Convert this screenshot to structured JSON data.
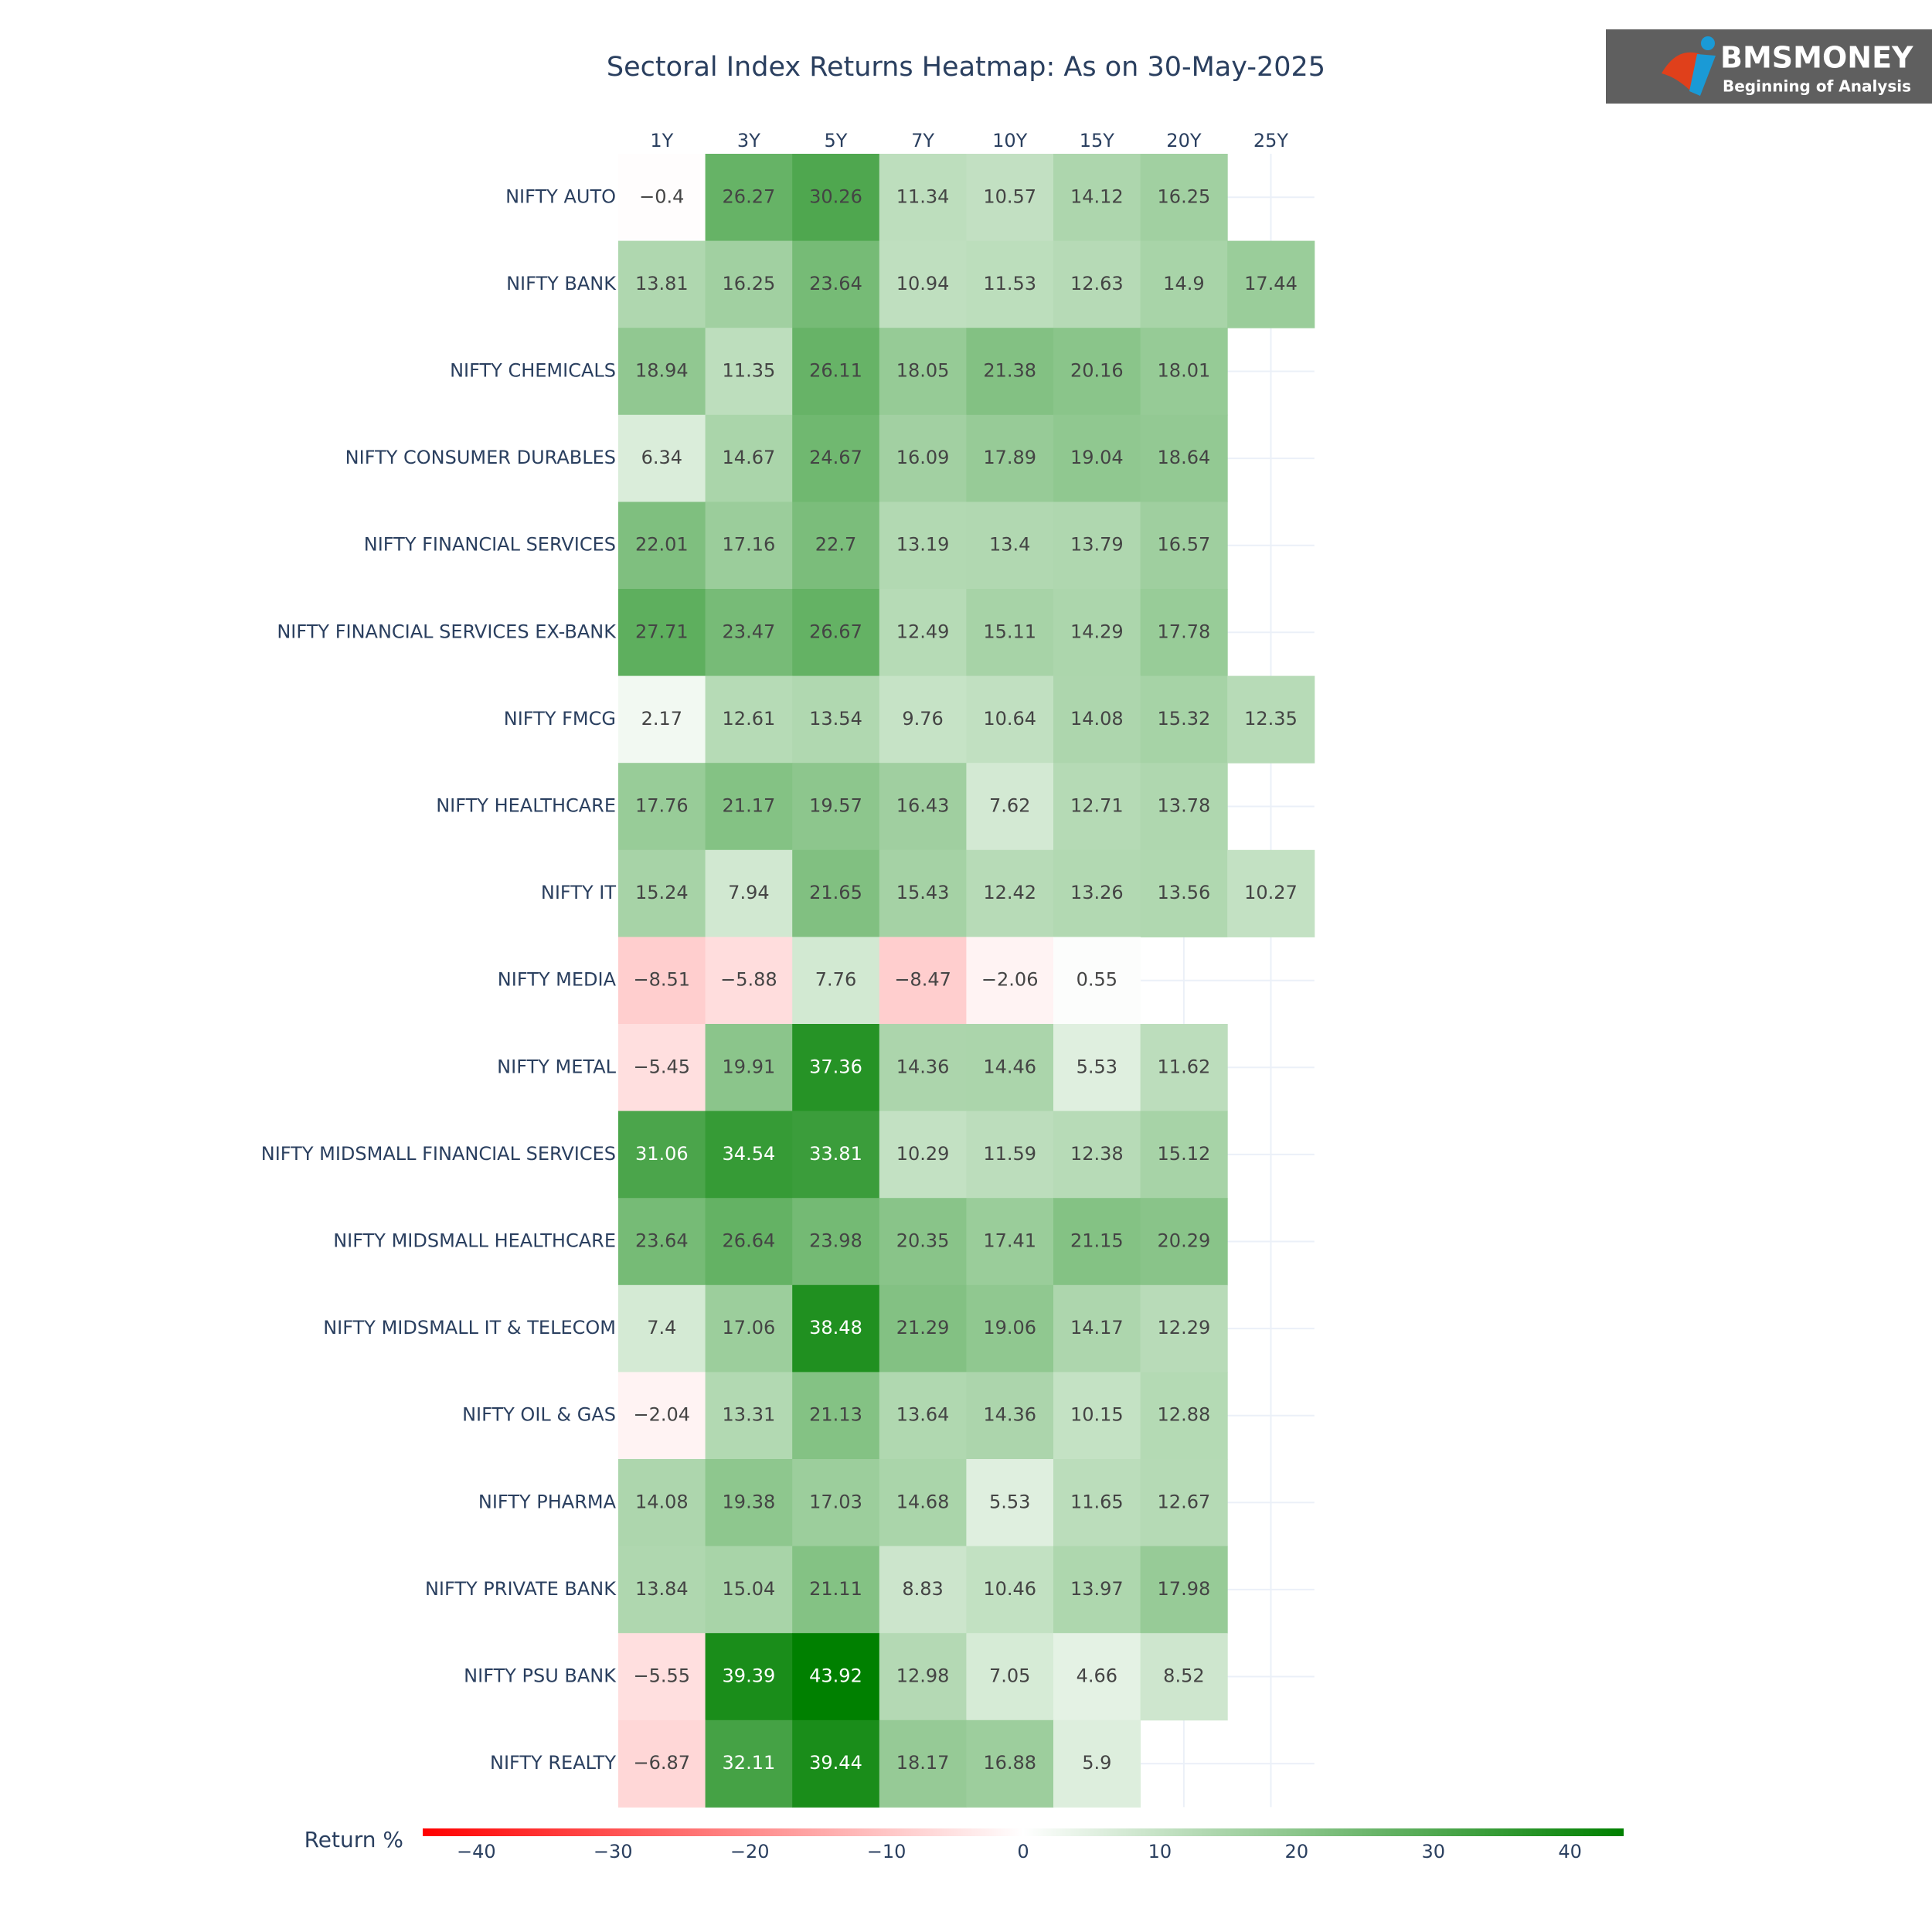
{
  "chart_data": {
    "type": "heatmap",
    "title": "Sectoral Index Returns Heatmap: As on 30-May-2025",
    "x": [
      "1Y",
      "3Y",
      "5Y",
      "7Y",
      "10Y",
      "15Y",
      "20Y",
      "25Y"
    ],
    "y": [
      "NIFTY AUTO",
      "NIFTY BANK",
      "NIFTY CHEMICALS",
      "NIFTY CONSUMER DURABLES",
      "NIFTY FINANCIAL SERVICES",
      "NIFTY FINANCIAL SERVICES EX-BANK",
      "NIFTY FMCG",
      "NIFTY HEALTHCARE",
      "NIFTY IT",
      "NIFTY MEDIA",
      "NIFTY METAL",
      "NIFTY MIDSMALL FINANCIAL SERVICES",
      "NIFTY MIDSMALL HEALTHCARE",
      "NIFTY MIDSMALL IT & TELECOM",
      "NIFTY OIL & GAS",
      "NIFTY PHARMA",
      "NIFTY PRIVATE BANK",
      "NIFTY PSU BANK",
      "NIFTY REALTY"
    ],
    "values": [
      [
        -0.4,
        26.27,
        30.26,
        11.34,
        10.57,
        14.12,
        16.25,
        null
      ],
      [
        13.81,
        16.25,
        23.64,
        10.94,
        11.53,
        12.63,
        14.9,
        17.44
      ],
      [
        18.94,
        11.35,
        26.11,
        18.05,
        21.38,
        20.16,
        18.01,
        null
      ],
      [
        6.34,
        14.67,
        24.67,
        16.09,
        17.89,
        19.04,
        18.64,
        null
      ],
      [
        22.01,
        17.16,
        22.7,
        13.19,
        13.4,
        13.79,
        16.57,
        null
      ],
      [
        27.71,
        23.47,
        26.67,
        12.49,
        15.11,
        14.29,
        17.78,
        null
      ],
      [
        2.17,
        12.61,
        13.54,
        9.76,
        10.64,
        14.08,
        15.32,
        12.35
      ],
      [
        17.76,
        21.17,
        19.57,
        16.43,
        7.62,
        12.71,
        13.78,
        null
      ],
      [
        15.24,
        7.94,
        21.65,
        15.43,
        12.42,
        13.26,
        13.56,
        10.27
      ],
      [
        -8.51,
        -5.88,
        7.76,
        -8.47,
        -2.06,
        0.55,
        null,
        null
      ],
      [
        -5.45,
        19.91,
        37.36,
        14.36,
        14.46,
        5.53,
        11.62,
        null
      ],
      [
        31.06,
        34.54,
        33.81,
        10.29,
        11.59,
        12.38,
        15.12,
        null
      ],
      [
        23.64,
        26.64,
        23.98,
        20.35,
        17.41,
        21.15,
        20.29,
        null
      ],
      [
        7.4,
        17.06,
        38.48,
        21.29,
        19.06,
        14.17,
        12.29,
        null
      ],
      [
        -2.04,
        13.31,
        21.13,
        13.64,
        14.36,
        10.15,
        12.88,
        null
      ],
      [
        14.08,
        19.38,
        17.03,
        14.68,
        5.53,
        11.65,
        12.67,
        null
      ],
      [
        13.84,
        15.04,
        21.11,
        8.83,
        10.46,
        13.97,
        17.98,
        null
      ],
      [
        -5.55,
        39.39,
        43.92,
        12.98,
        7.05,
        4.66,
        8.52,
        null
      ],
      [
        -6.87,
        32.11,
        39.44,
        18.17,
        16.88,
        5.9,
        null,
        null
      ]
    ],
    "value_labels": [
      [
        "−0.4",
        "26.27",
        "30.26",
        "11.34",
        "10.57",
        "14.12",
        "16.25",
        null
      ],
      [
        "13.81",
        "16.25",
        "23.64",
        "10.94",
        "11.53",
        "12.63",
        "14.9",
        "17.44"
      ],
      [
        "18.94",
        "11.35",
        "26.11",
        "18.05",
        "21.38",
        "20.16",
        "18.01",
        null
      ],
      [
        "6.34",
        "14.67",
        "24.67",
        "16.09",
        "17.89",
        "19.04",
        "18.64",
        null
      ],
      [
        "22.01",
        "17.16",
        "22.7",
        "13.19",
        "13.4",
        "13.79",
        "16.57",
        null
      ],
      [
        "27.71",
        "23.47",
        "26.67",
        "12.49",
        "15.11",
        "14.29",
        "17.78",
        null
      ],
      [
        "2.17",
        "12.61",
        "13.54",
        "9.76",
        "10.64",
        "14.08",
        "15.32",
        "12.35"
      ],
      [
        "17.76",
        "21.17",
        "19.57",
        "16.43",
        "7.62",
        "12.71",
        "13.78",
        null
      ],
      [
        "15.24",
        "7.94",
        "21.65",
        "15.43",
        "12.42",
        "13.26",
        "13.56",
        "10.27"
      ],
      [
        "−8.51",
        "−5.88",
        "7.76",
        "−8.47",
        "−2.06",
        "0.55",
        null,
        null
      ],
      [
        "−5.45",
        "19.91",
        "37.36",
        "14.36",
        "14.46",
        "5.53",
        "11.62",
        null
      ],
      [
        "31.06",
        "34.54",
        "33.81",
        "10.29",
        "11.59",
        "12.38",
        "15.12",
        null
      ],
      [
        "23.64",
        "26.64",
        "23.98",
        "20.35",
        "17.41",
        "21.15",
        "20.29",
        null
      ],
      [
        "7.4",
        "17.06",
        "38.48",
        "21.29",
        "19.06",
        "14.17",
        "12.29",
        null
      ],
      [
        "−2.04",
        "13.31",
        "21.13",
        "13.64",
        "14.36",
        "10.15",
        "12.88",
        null
      ],
      [
        "14.08",
        "19.38",
        "17.03",
        "14.68",
        "5.53",
        "11.65",
        "12.67",
        null
      ],
      [
        "13.84",
        "15.04",
        "21.11",
        "8.83",
        "10.46",
        "13.97",
        "17.98",
        null
      ],
      [
        "−5.55",
        "39.39",
        "43.92",
        "12.98",
        "7.05",
        "4.66",
        "8.52",
        null
      ],
      [
        "−6.87",
        "32.11",
        "39.44",
        "18.17",
        "16.88",
        "5.9",
        null,
        null
      ]
    ],
    "zlim": [
      -43.92,
      43.92
    ],
    "colorscale": [
      "#ff0000",
      "#ffffff",
      "#008000"
    ],
    "colorbar_title": "Return %",
    "colorbar_ticks": [
      {
        "value": -40,
        "label": "−40"
      },
      {
        "value": -30,
        "label": "−30"
      },
      {
        "value": -20,
        "label": "−20"
      },
      {
        "value": -10,
        "label": "−10"
      },
      0,
      10,
      20,
      30,
      40
    ],
    "grid": true
  },
  "logo": {
    "name": "BMSMONEY",
    "tagline": "Beginning of Analysis"
  }
}
